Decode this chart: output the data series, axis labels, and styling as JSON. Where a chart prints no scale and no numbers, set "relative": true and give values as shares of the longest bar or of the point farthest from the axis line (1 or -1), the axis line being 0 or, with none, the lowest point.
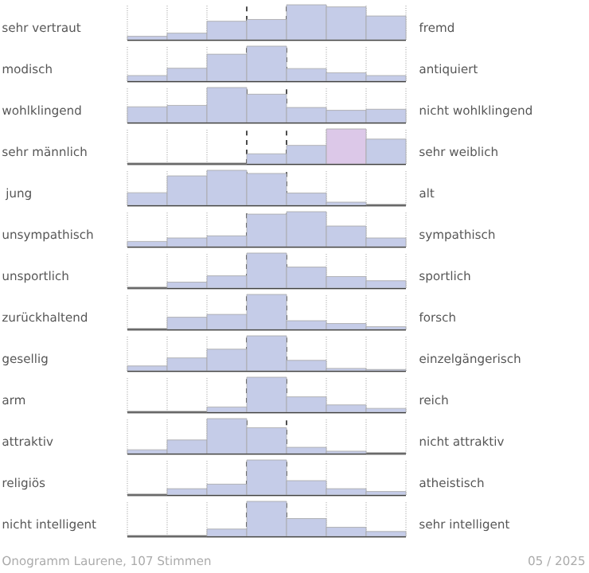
{
  "chart_data": [
    {
      "type": "bar",
      "relative": true,
      "grid": "x",
      "ylabel": "sehr vertraut",
      "y2label": "fremd",
      "categories": [
        null,
        null,
        null,
        null,
        null,
        null,
        null
      ],
      "color": "#c5cce8",
      "values": [
        0.1,
        0.19,
        0.53,
        0.58,
        1,
        0.94,
        0.68
      ]
    },
    {
      "type": "bar",
      "relative": true,
      "grid": "x",
      "ylabel": "modisch",
      "y2label": "antiquiert",
      "categories": [
        null,
        null,
        null,
        null,
        null,
        null,
        null
      ],
      "color": "#c5cce8",
      "values": [
        0.16,
        0.37,
        0.77,
        1,
        0.36,
        0.24,
        0.16
      ]
    },
    {
      "type": "bar",
      "relative": true,
      "grid": "x",
      "ylabel": "wohlklingend",
      "y2label": "nicht wohlklingend",
      "categories": [
        null,
        null,
        null,
        null,
        null,
        null,
        null
      ],
      "color": "#c5cce8",
      "values": [
        0.45,
        0.49,
        1,
        0.81,
        0.43,
        0.35,
        0.38
      ]
    },
    {
      "type": "bar",
      "relative": true,
      "grid": "x",
      "ylabel": "sehr männlich",
      "y2label": "sehr weiblich",
      "categories": [
        null,
        null,
        null,
        null,
        null,
        null,
        null
      ],
      "colors": [
        "#c5cce8",
        "#c5cce8",
        "#c5cce8",
        "#c5cce8",
        "#c5cce8",
        "#dcc8e8",
        "#c5cce8"
      ],
      "values": [
        0,
        0,
        0,
        0.29,
        0.53,
        1,
        0.71
      ]
    },
    {
      "type": "bar",
      "relative": true,
      "grid": "x",
      "ylabel": " jung",
      "y2label": "alt",
      "categories": [
        null,
        null,
        null,
        null,
        null,
        null,
        null
      ],
      "color": "#c5cce8",
      "values": [
        0.36,
        0.84,
        1,
        0.91,
        0.35,
        0.09,
        0
      ]
    },
    {
      "type": "bar",
      "relative": true,
      "grid": "x",
      "ylabel": "unsympathisch",
      "y2label": "sympathisch",
      "categories": [
        null,
        null,
        null,
        null,
        null,
        null,
        null
      ],
      "color": "#c5cce8",
      "values": [
        0.15,
        0.25,
        0.31,
        0.93,
        1,
        0.59,
        0.25
      ]
    },
    {
      "type": "bar",
      "relative": true,
      "grid": "x",
      "ylabel": "unsportlich",
      "y2label": "sportlich",
      "categories": [
        null,
        null,
        null,
        null,
        null,
        null,
        null
      ],
      "color": "#c5cce8",
      "values": [
        0,
        0.17,
        0.35,
        1,
        0.6,
        0.33,
        0.21
      ]
    },
    {
      "type": "bar",
      "relative": true,
      "grid": "x",
      "ylabel": "zurückhaltend",
      "y2label": "forsch",
      "categories": [
        null,
        null,
        null,
        null,
        null,
        null,
        null
      ],
      "color": "#c5cce8",
      "values": [
        0,
        0.35,
        0.43,
        1,
        0.25,
        0.17,
        0.08
      ]
    },
    {
      "type": "bar",
      "relative": true,
      "grid": "x",
      "ylabel": "gesellig",
      "y2label": "einzelgängerisch",
      "categories": [
        null,
        null,
        null,
        null,
        null,
        null,
        null
      ],
      "color": "#c5cce8",
      "values": [
        0.14,
        0.37,
        0.62,
        1,
        0.3,
        0.07,
        0.04
      ]
    },
    {
      "type": "bar",
      "relative": true,
      "grid": "x",
      "ylabel": "arm",
      "y2label": "reich",
      "categories": [
        null,
        null,
        null,
        null,
        null,
        null,
        null
      ],
      "color": "#c5cce8",
      "values": [
        0,
        0,
        0.15,
        1,
        0.44,
        0.21,
        0.11
      ]
    },
    {
      "type": "bar",
      "relative": true,
      "grid": "x",
      "ylabel": "attraktiv",
      "y2label": "nicht attraktiv",
      "categories": [
        null,
        null,
        null,
        null,
        null,
        null,
        null
      ],
      "color": "#c5cce8",
      "values": [
        0.11,
        0.39,
        1,
        0.74,
        0.18,
        0.07,
        0
      ]
    },
    {
      "type": "bar",
      "relative": true,
      "grid": "x",
      "ylabel": "religiös",
      "y2label": "atheistisch",
      "categories": [
        null,
        null,
        null,
        null,
        null,
        null,
        null
      ],
      "color": "#c5cce8",
      "values": [
        0,
        0.18,
        0.31,
        1,
        0.41,
        0.18,
        0.1
      ]
    },
    {
      "type": "bar",
      "relative": true,
      "grid": "x",
      "ylabel": "nicht intelligent",
      "y2label": "sehr intelligent",
      "categories": [
        null,
        null,
        null,
        null,
        null,
        null,
        null
      ],
      "color": "#c5cce8",
      "values": [
        0,
        0,
        0.21,
        1,
        0.51,
        0.26,
        0.14
      ],
      "annotations": [
        "Onogramm Laurene, 107 Stimmen",
        "05 / 2025"
      ]
    }
  ]
}
